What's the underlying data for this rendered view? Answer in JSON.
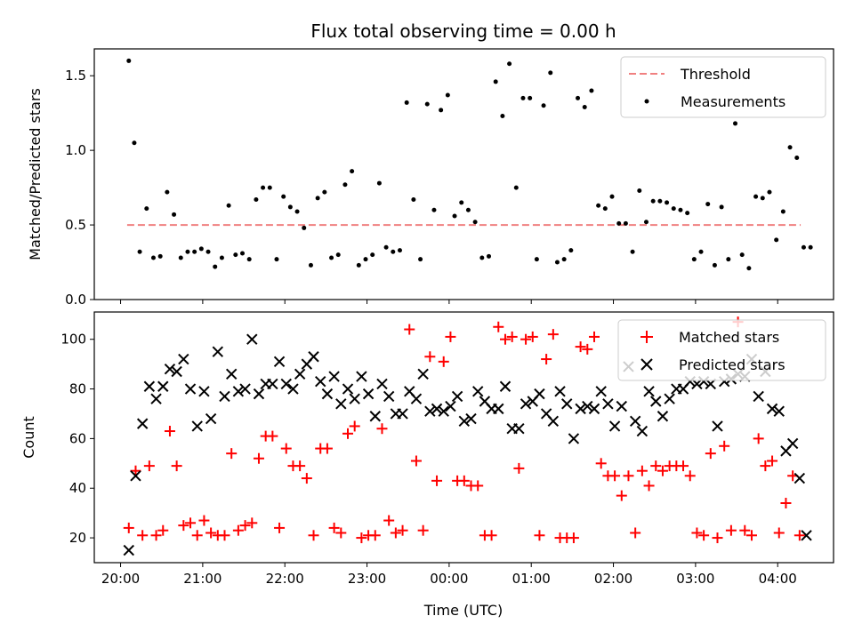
{
  "chart_data": [
    {
      "type": "scatter",
      "title": "Flux total observing time = 0.00 h",
      "xlabel": "",
      "ylabel": "Matched/Predicted stars",
      "ylim": [
        0,
        1.68
      ],
      "yticks": [
        0.0,
        0.5,
        1.0,
        1.5
      ],
      "ytick_labels": [
        "0.0",
        "0.5",
        "1.0",
        "1.5"
      ],
      "xlim_hours": [
        19.68,
        28.68
      ],
      "xticks_hours": [
        20,
        21,
        22,
        23,
        24,
        25,
        26,
        27,
        28
      ],
      "legend_position": "top-right",
      "threshold": {
        "name": "Threshold",
        "value": 0.5,
        "x_range_hours": [
          20.08,
          28.28
        ],
        "color": "#f08080"
      },
      "series": [
        {
          "name": "Measurements",
          "color": "#000000",
          "x": [
            "20:06",
            "20:10",
            "20:14",
            "20:19",
            "20:24",
            "20:29",
            "20:34",
            "20:39",
            "20:44",
            "20:49",
            "20:54",
            "20:59",
            "21:04",
            "21:09",
            "21:14",
            "21:19",
            "21:24",
            "21:29",
            "21:34",
            "21:39",
            "21:44",
            "21:49",
            "21:54",
            "21:59",
            "22:04",
            "22:09",
            "22:14",
            "22:19",
            "22:24",
            "22:29",
            "22:34",
            "22:39",
            "22:44",
            "22:49",
            "22:54",
            "22:59",
            "23:04",
            "23:09",
            "23:14",
            "23:19",
            "23:24",
            "23:29",
            "23:34",
            "23:39",
            "23:44",
            "23:49",
            "23:54",
            "23:59",
            "00:04",
            "00:09",
            "00:14",
            "00:19",
            "00:24",
            "00:29",
            "00:34",
            "00:39",
            "00:44",
            "00:49",
            "00:54",
            "00:59",
            "01:04",
            "01:09",
            "01:14",
            "01:19",
            "01:24",
            "01:29",
            "01:34",
            "01:39",
            "01:44",
            "01:49",
            "01:54",
            "01:59",
            "02:04",
            "02:09",
            "02:14",
            "02:19",
            "02:24",
            "02:29",
            "02:34",
            "02:39",
            "02:44",
            "02:49",
            "02:54",
            "02:59",
            "03:04",
            "03:09",
            "03:14",
            "03:19",
            "03:24",
            "03:29",
            "03:34",
            "03:39",
            "03:44",
            "03:49",
            "03:54",
            "03:59",
            "04:04",
            "04:09",
            "04:14",
            "04:19",
            "04:24"
          ],
          "y": [
            1.6,
            1.05,
            0.32,
            0.61,
            0.28,
            0.29,
            0.72,
            0.57,
            0.28,
            0.32,
            0.32,
            0.34,
            0.32,
            0.22,
            0.28,
            0.63,
            0.3,
            0.31,
            0.27,
            0.67,
            0.75,
            0.75,
            0.27,
            0.69,
            0.62,
            0.59,
            0.48,
            0.23,
            0.68,
            0.72,
            0.28,
            0.3,
            0.77,
            0.86,
            0.23,
            0.27,
            0.3,
            0.78,
            0.35,
            0.32,
            0.33,
            1.32,
            0.67,
            0.27,
            1.31,
            0.6,
            1.27,
            1.37,
            0.56,
            0.65,
            0.6,
            0.52,
            0.28,
            0.29,
            1.46,
            1.23,
            1.58,
            0.75,
            1.35,
            1.35,
            0.27,
            1.3,
            1.52,
            0.25,
            0.27,
            0.33,
            1.35,
            1.29,
            1.4,
            0.63,
            0.61,
            0.69,
            0.51,
            0.51,
            0.32,
            0.73,
            0.52,
            0.66,
            0.66,
            0.65,
            0.61,
            0.6,
            0.58,
            0.27,
            0.32,
            0.64,
            0.23,
            0.62,
            0.27,
            1.18,
            0.3,
            0.21,
            0.69,
            0.68,
            0.72,
            0.4,
            0.59,
            1.02,
            0.95,
            0.35,
            0.35
          ]
        }
      ]
    },
    {
      "type": "scatter",
      "title": "",
      "xlabel": "Time (UTC)",
      "ylabel": "Count",
      "ylim": [
        10,
        111
      ],
      "yticks": [
        20,
        40,
        60,
        80,
        100
      ],
      "ytick_labels": [
        "20",
        "40",
        "60",
        "80",
        "100"
      ],
      "xlim_hours": [
        19.68,
        28.68
      ],
      "xticks_hours": [
        20,
        21,
        22,
        23,
        24,
        25,
        26,
        27,
        28
      ],
      "xtick_labels": [
        "20:00",
        "21:00",
        "22:00",
        "23:00",
        "00:00",
        "01:00",
        "02:00",
        "03:00",
        "04:00"
      ],
      "legend_position": "top-right",
      "series": [
        {
          "name": "Matched stars",
          "marker": "plus",
          "color": "#ff0000",
          "x": [
            "20:06",
            "20:11",
            "20:16",
            "20:21",
            "20:26",
            "20:31",
            "20:36",
            "20:41",
            "20:46",
            "20:51",
            "20:56",
            "21:01",
            "21:06",
            "21:11",
            "21:16",
            "21:21",
            "21:26",
            "21:31",
            "21:36",
            "21:41",
            "21:46",
            "21:51",
            "21:56",
            "22:01",
            "22:06",
            "22:11",
            "22:16",
            "22:21",
            "22:26",
            "22:31",
            "22:36",
            "22:41",
            "22:46",
            "22:51",
            "22:56",
            "23:01",
            "23:06",
            "23:11",
            "23:16",
            "23:21",
            "23:26",
            "23:31",
            "23:36",
            "23:41",
            "23:46",
            "23:51",
            "23:56",
            "00:01",
            "00:06",
            "00:11",
            "00:16",
            "00:21",
            "00:26",
            "00:31",
            "00:36",
            "00:41",
            "00:46",
            "00:51",
            "00:56",
            "01:01",
            "01:06",
            "01:11",
            "01:16",
            "01:21",
            "01:26",
            "01:31",
            "01:36",
            "01:41",
            "01:46",
            "01:51",
            "01:56",
            "02:01",
            "02:06",
            "02:11",
            "02:16",
            "02:21",
            "02:26",
            "02:31",
            "02:36",
            "02:41",
            "02:46",
            "02:51",
            "02:56",
            "03:01",
            "03:06",
            "03:11",
            "03:16",
            "03:21",
            "03:26",
            "03:31",
            "03:36",
            "03:41",
            "03:46",
            "03:51",
            "03:56",
            "04:01",
            "04:06",
            "04:11",
            "04:16"
          ],
          "y": [
            24,
            47,
            21,
            49,
            21,
            23,
            63,
            49,
            25,
            26,
            21,
            27,
            22,
            21,
            21,
            54,
            23,
            25,
            26,
            52,
            61,
            61,
            24,
            56,
            49,
            49,
            44,
            21,
            56,
            56,
            24,
            22,
            62,
            65,
            20,
            21,
            21,
            64,
            27,
            22,
            23,
            104,
            51,
            23,
            93,
            43,
            91,
            101,
            43,
            43,
            41,
            41,
            21,
            21,
            105,
            100,
            101,
            48,
            100,
            101,
            21,
            92,
            102,
            20,
            20,
            20,
            97,
            96,
            101,
            50,
            45,
            45,
            37,
            45,
            22,
            47,
            41,
            49,
            47,
            49,
            49,
            49,
            45,
            22,
            21,
            54,
            20,
            57,
            23,
            107,
            23,
            21,
            60,
            49,
            51,
            22,
            34,
            45,
            21
          ]
        },
        {
          "name": "Predicted stars",
          "marker": "x",
          "color": "#000000",
          "x": [
            "20:06",
            "20:11",
            "20:16",
            "20:21",
            "20:26",
            "20:31",
            "20:36",
            "20:41",
            "20:46",
            "20:51",
            "20:56",
            "21:01",
            "21:06",
            "21:11",
            "21:16",
            "21:21",
            "21:26",
            "21:31",
            "21:36",
            "21:41",
            "21:46",
            "21:51",
            "21:56",
            "22:01",
            "22:06",
            "22:11",
            "22:16",
            "22:21",
            "22:26",
            "22:31",
            "22:36",
            "22:41",
            "22:46",
            "22:51",
            "22:56",
            "23:01",
            "23:06",
            "23:11",
            "23:16",
            "23:21",
            "23:26",
            "23:31",
            "23:36",
            "23:41",
            "23:46",
            "23:51",
            "23:56",
            "00:01",
            "00:06",
            "00:11",
            "00:16",
            "00:21",
            "00:26",
            "00:31",
            "00:36",
            "00:41",
            "00:46",
            "00:51",
            "00:56",
            "01:01",
            "01:06",
            "01:11",
            "01:16",
            "01:21",
            "01:26",
            "01:31",
            "01:36",
            "01:41",
            "01:46",
            "01:51",
            "01:56",
            "02:01",
            "02:06",
            "02:11",
            "02:16",
            "02:21",
            "02:26",
            "02:31",
            "02:36",
            "02:41",
            "02:46",
            "02:51",
            "02:56",
            "03:01",
            "03:06",
            "03:11",
            "03:16",
            "03:21",
            "03:26",
            "03:31",
            "03:36",
            "03:41",
            "03:46",
            "03:51",
            "03:56",
            "04:01",
            "04:06",
            "04:11",
            "04:16",
            "04:21"
          ],
          "y": [
            15,
            45,
            66,
            81,
            76,
            81,
            88,
            87,
            92,
            80,
            65,
            79,
            68,
            95,
            77,
            86,
            79,
            80,
            100,
            78,
            82,
            82,
            91,
            82,
            80,
            86,
            90,
            93,
            83,
            78,
            85,
            74,
            80,
            76,
            85,
            78,
            69,
            82,
            77,
            70,
            70,
            79,
            76,
            86,
            71,
            72,
            71,
            73,
            77,
            67,
            68,
            79,
            75,
            72,
            72,
            81,
            64,
            64,
            74,
            75,
            78,
            70,
            67,
            79,
            74,
            60,
            72,
            73,
            72,
            79,
            74,
            65,
            73,
            89,
            67,
            63,
            79,
            75,
            69,
            76,
            80,
            80,
            83,
            82,
            83,
            82,
            65,
            83,
            84,
            86,
            85,
            92,
            77,
            87,
            72,
            71,
            55,
            58,
            44,
            21
          ]
        }
      ]
    }
  ]
}
